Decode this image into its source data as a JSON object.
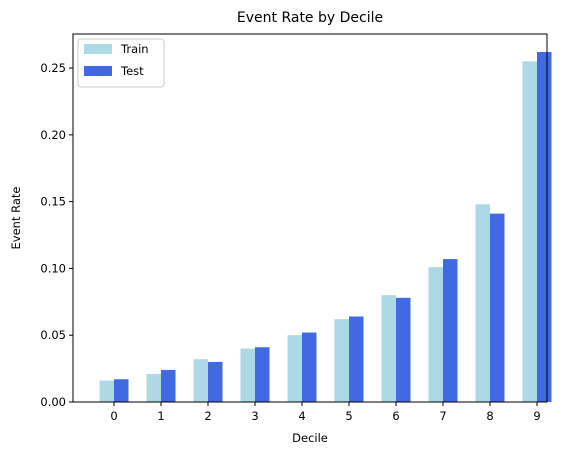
{
  "chart_data": {
    "type": "bar",
    "title": "Event Rate by Decile",
    "xlabel": "Decile",
    "ylabel": "Event Rate",
    "categories": [
      "0",
      "1",
      "2",
      "3",
      "4",
      "5",
      "6",
      "7",
      "8",
      "9"
    ],
    "series": [
      {
        "name": "Train",
        "color": "#add8e6",
        "values": [
          0.016,
          0.021,
          0.032,
          0.04,
          0.05,
          0.062,
          0.08,
          0.101,
          0.148,
          0.255
        ]
      },
      {
        "name": "Test",
        "color": "#4169e1",
        "values": [
          0.017,
          0.024,
          0.03,
          0.041,
          0.052,
          0.064,
          0.078,
          0.107,
          0.141,
          0.262
        ]
      }
    ],
    "ylim": [
      0,
      0.2755
    ],
    "yticks": [
      0.0,
      0.05,
      0.1,
      0.15,
      0.2,
      0.25
    ],
    "ytick_labels": [
      "0.00",
      "0.05",
      "0.10",
      "0.15",
      "0.20",
      "0.25"
    ],
    "grid": false,
    "legend_position": "top-left"
  }
}
